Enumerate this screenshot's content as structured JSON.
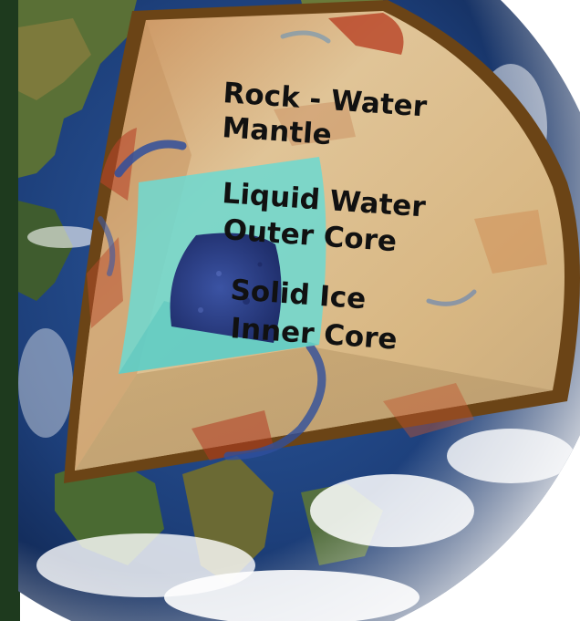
{
  "labels": {
    "mantle": [
      "Rock - Water",
      "Mantle"
    ],
    "outer_core": [
      "Liquid Water",
      "Outer Core"
    ],
    "inner_core": [
      "Solid Ice",
      "Inner Core"
    ]
  },
  "colors": {
    "ocean": "#1d3f7a",
    "land": "#4f6b34",
    "mantle": "#d9b98a",
    "outer_core": "#6fd8cf",
    "inner_core": "#2a3d86",
    "rim": "#6b4416"
  }
}
